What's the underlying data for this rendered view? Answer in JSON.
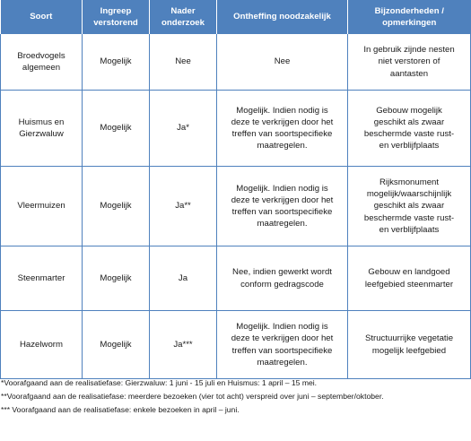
{
  "table": {
    "headers": [
      "Soort",
      "Ingreep verstorend",
      "Nader onderzoek",
      "Ontheffing noodzakelijk",
      "Bijzonderheden / opmerkingen"
    ],
    "rows": [
      {
        "soort": "Broedvogels algemeen",
        "ingreep": "Mogelijk",
        "onderzoek": "Nee",
        "ontheffing": "Nee",
        "bijzonderheden": "In gebruik zijnde nesten niet verstoren of aantasten"
      },
      {
        "soort": "Huismus en Gierzwaluw",
        "ingreep": "Mogelijk",
        "onderzoek": "Ja*",
        "ontheffing": "Mogelijk. Indien nodig is deze te verkrijgen door het treffen van soortspecifieke maatregelen.",
        "bijzonderheden": "Gebouw mogelijk geschikt als zwaar beschermde vaste rust- en verblijfplaats"
      },
      {
        "soort": "Vleermuizen",
        "ingreep": "Mogelijk",
        "onderzoek": "Ja**",
        "ontheffing": "Mogelijk. Indien nodig is deze te verkrijgen door het treffen van soortspecifieke maatregelen.",
        "bijzonderheden": "Rijksmonument mogelijk/waarschijnlijk geschikt als zwaar beschermde vaste rust- en verblijfplaats"
      },
      {
        "soort": "Steenmarter",
        "ingreep": "Mogelijk",
        "onderzoek": "Ja",
        "ontheffing": "Nee, indien gewerkt wordt conform gedragscode",
        "bijzonderheden": "Gebouw en landgoed leefgebied steenmarter"
      },
      {
        "soort": "Hazelworm",
        "ingreep": "Mogelijk",
        "onderzoek": "Ja***",
        "ontheffing": "Mogelijk. Indien nodig is deze te verkrijgen door het treffen van soortspecifieke maatregelen.",
        "bijzonderheden": "Structuurrijke vegetatie mogelijk leefgebied"
      }
    ]
  },
  "footnotes": [
    "*Voorafgaand aan de realisatiefase: Gierzwaluw: 1 juni - 15 juli en Huismus: 1 april – 15 mei.",
    "**Voorafgaand aan de realisatiefase: meerdere bezoeken (vier tot acht) verspreid over juni – september/oktober.",
    "*** Voorafgaand aan de realisatiefase: enkele bezoeken in april – juni."
  ],
  "colors": {
    "header_bg": "#4f81bd",
    "header_text": "#ffffff",
    "grid": "#4f81bd"
  }
}
